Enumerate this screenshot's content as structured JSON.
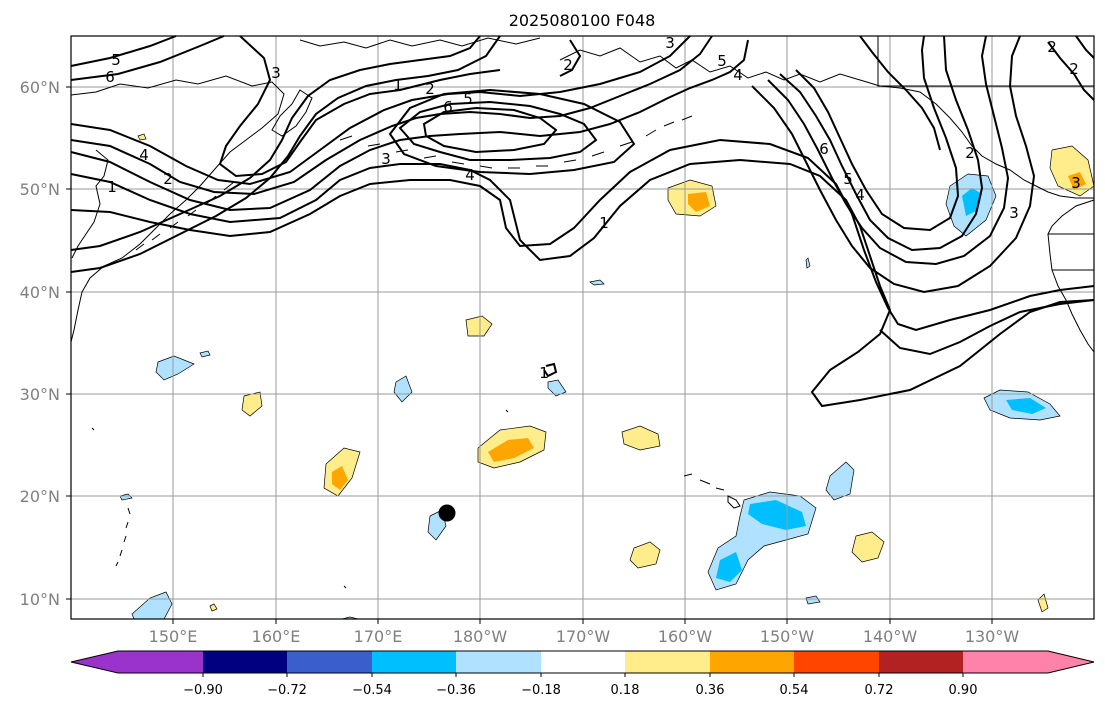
{
  "title": "2025080100 F048",
  "lat_labels": [
    "60°N",
    "50°N",
    "40°N",
    "30°N",
    "20°N",
    "10°N"
  ],
  "lon_labels": [
    "150°E",
    "160°E",
    "170°E",
    "180°W",
    "170°W",
    "160°W",
    "150°W",
    "140°W",
    "130°W"
  ],
  "contour_labels": [
    "5",
    "6",
    "4",
    "3",
    "2",
    "1",
    "2",
    "6",
    "5",
    "4",
    "3",
    "2",
    "1",
    "3",
    "4",
    "5",
    "6",
    "5",
    "4",
    "2",
    "1",
    "2",
    "3",
    "1",
    "3",
    "2"
  ],
  "colorbar": {
    "ticks": [
      "−0.90",
      "−0.72",
      "−0.54",
      "−0.36",
      "−0.18",
      "0.18",
      "0.36",
      "0.54",
      "0.72",
      "0.90"
    ],
    "colors": [
      "#9933cc",
      "#000080",
      "#3a5fcd",
      "#00bfff",
      "#b0e2ff",
      "#ffffff",
      "#ffec8b",
      "#ffa500",
      "#ff4500",
      "#b22222",
      "#ff82ab"
    ]
  },
  "colors": {
    "light_blue": "#b0e2ff",
    "blue": "#00bfff",
    "light_yellow": "#ffec8b",
    "orange": "#ffa500"
  }
}
